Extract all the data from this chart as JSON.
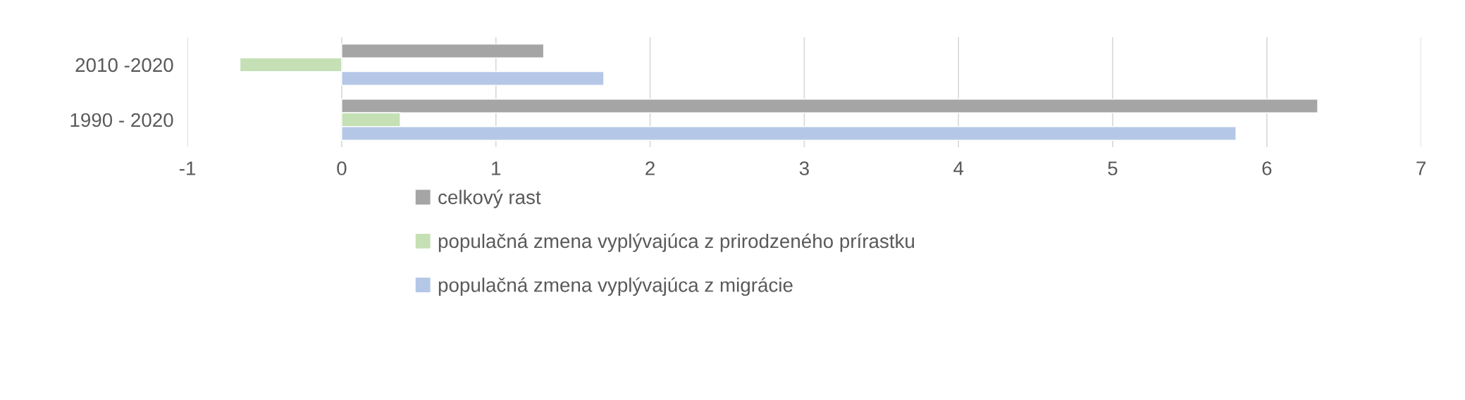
{
  "chart_data": {
    "type": "bar",
    "orientation": "horizontal",
    "categories": [
      "2010 -2020",
      "1990 - 2020"
    ],
    "series": [
      {
        "name": "celkový rast",
        "color": "#a5a5a5",
        "values": [
          1.31,
          6.33
        ]
      },
      {
        "name": "populačná zmena vyplývajúca z prirodzeného prírastku",
        "color": "#c5e0b4",
        "values": [
          -0.66,
          0.38
        ]
      },
      {
        "name": "populačná zmena vyplývajúca z migrácie",
        "color": "#b4c7e7",
        "values": [
          1.7,
          5.8
        ]
      }
    ],
    "xlim": [
      -1,
      7
    ],
    "xticks": [
      -1,
      0,
      1,
      2,
      3,
      4,
      5,
      6,
      7
    ],
    "grid": "x",
    "legend": "bottom"
  }
}
